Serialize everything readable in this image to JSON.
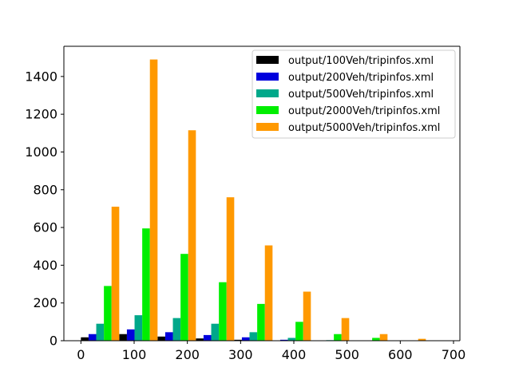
{
  "chart_data": {
    "type": "bar",
    "title": "",
    "xlabel": "",
    "ylabel": "",
    "xlim": [
      -32,
      712
    ],
    "ylim": [
      0,
      1560
    ],
    "bin_width": 72,
    "x": [
      0,
      72,
      144,
      216,
      288,
      360,
      432,
      504,
      576,
      648
    ],
    "xticks": [
      "0",
      "100",
      "200",
      "300",
      "400",
      "500",
      "600",
      "700"
    ],
    "yticks": [
      "0",
      "200",
      "400",
      "600",
      "800",
      "1000",
      "1200",
      "1400"
    ],
    "series": [
      {
        "name": "output/100Veh/tripinfos.xml",
        "color": "#000000",
        "values": [
          18,
          35,
          22,
          12,
          5,
          2,
          1,
          0,
          0,
          0
        ]
      },
      {
        "name": "output/200Veh/tripinfos.xml",
        "color": "#0000dd",
        "values": [
          35,
          60,
          45,
          30,
          18,
          5,
          2,
          0,
          0,
          0
        ]
      },
      {
        "name": "output/500Veh/tripinfos.xml",
        "color": "#00a88a",
        "values": [
          90,
          135,
          120,
          90,
          45,
          15,
          3,
          2,
          0,
          0
        ]
      },
      {
        "name": "output/2000Veh/tripinfos.xml",
        "color": "#00ee00",
        "values": [
          290,
          595,
          460,
          310,
          195,
          100,
          35,
          15,
          2,
          0
        ]
      },
      {
        "name": "output/5000Veh/tripinfos.xml",
        "color": "#ff9900",
        "values": [
          710,
          1490,
          1115,
          760,
          505,
          260,
          120,
          35,
          10,
          0
        ]
      }
    ],
    "grid": false,
    "legend_position": "upper right"
  }
}
